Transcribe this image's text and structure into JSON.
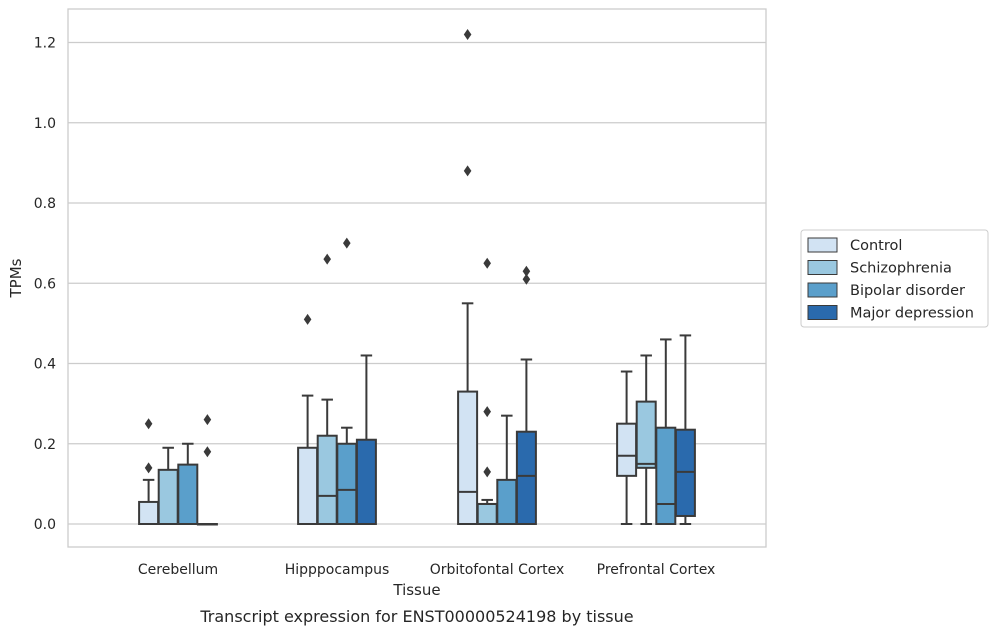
{
  "chart_data": {
    "type": "box",
    "title": "",
    "caption": "Transcript expression for ENST00000524198 by tissue",
    "xlabel": "Tissue",
    "ylabel": "TPMs",
    "ylim": [
      -0.06,
      1.28
    ],
    "yticks": [
      0.0,
      0.2,
      0.4,
      0.6,
      0.8,
      1.0,
      1.2
    ],
    "ytick_labels": [
      "0.0",
      "0.2",
      "0.4",
      "0.6",
      "0.8",
      "1.0",
      "1.2"
    ],
    "grid": true,
    "legend_position": "right",
    "categories": [
      "Cerebellum",
      "Hipppocampus",
      "Orbitofontal Cortex",
      "Prefrontal Cortex"
    ],
    "series": [
      {
        "name": "Control",
        "color": "#d2e3f3",
        "boxes": [
          {
            "whisker_low": 0.0,
            "q1": 0.0,
            "median": 0.0,
            "q3": 0.055,
            "whisker_high": 0.11,
            "outliers": [
              0.14,
              0.25
            ]
          },
          {
            "whisker_low": 0.0,
            "q1": 0.0,
            "median": 0.0,
            "q3": 0.19,
            "whisker_high": 0.32,
            "outliers": [
              0.51
            ]
          },
          {
            "whisker_low": 0.0,
            "q1": 0.0,
            "median": 0.08,
            "q3": 0.33,
            "whisker_high": 0.55,
            "outliers": [
              0.88,
              1.22
            ]
          },
          {
            "whisker_low": 0.0,
            "q1": 0.12,
            "median": 0.17,
            "q3": 0.25,
            "whisker_high": 0.38,
            "outliers": []
          }
        ]
      },
      {
        "name": "Schizophrenia",
        "color": "#9ac8e0",
        "boxes": [
          {
            "whisker_low": 0.0,
            "q1": 0.0,
            "median": 0.0,
            "q3": 0.135,
            "whisker_high": 0.19,
            "outliers": []
          },
          {
            "whisker_low": 0.0,
            "q1": 0.0,
            "median": 0.07,
            "q3": 0.22,
            "whisker_high": 0.31,
            "outliers": [
              0.66
            ]
          },
          {
            "whisker_low": 0.0,
            "q1": 0.0,
            "median": 0.05,
            "q3": 0.05,
            "whisker_high": 0.06,
            "outliers": [
              0.13,
              0.28,
              0.65
            ]
          },
          {
            "whisker_low": 0.0,
            "q1": 0.14,
            "median": 0.15,
            "q3": 0.305,
            "whisker_high": 0.42,
            "outliers": []
          }
        ]
      },
      {
        "name": "Bipolar disorder",
        "color": "#5a9fcb",
        "boxes": [
          {
            "whisker_low": 0.0,
            "q1": 0.0,
            "median": 0.0,
            "q3": 0.148,
            "whisker_high": 0.2,
            "outliers": []
          },
          {
            "whisker_low": 0.0,
            "q1": 0.0,
            "median": 0.085,
            "q3": 0.2,
            "whisker_high": 0.24,
            "outliers": [
              0.7
            ]
          },
          {
            "whisker_low": 0.0,
            "q1": 0.0,
            "median": 0.0,
            "q3": 0.11,
            "whisker_high": 0.27,
            "outliers": []
          },
          {
            "whisker_low": 0.0,
            "q1": 0.0,
            "median": 0.05,
            "q3": 0.24,
            "whisker_high": 0.46,
            "outliers": []
          }
        ]
      },
      {
        "name": "Major depression",
        "color": "#2a6aad",
        "boxes": [
          {
            "whisker_low": 0.0,
            "q1": 0.0,
            "median": 0.0,
            "q3": 0.0,
            "whisker_high": 0.0,
            "outliers": [
              0.18,
              0.26
            ]
          },
          {
            "whisker_low": 0.0,
            "q1": 0.0,
            "median": 0.0,
            "q3": 0.21,
            "whisker_high": 0.42,
            "outliers": []
          },
          {
            "whisker_low": 0.0,
            "q1": 0.0,
            "median": 0.12,
            "q3": 0.23,
            "whisker_high": 0.41,
            "outliers": [
              0.61,
              0.63
            ]
          },
          {
            "whisker_low": 0.0,
            "q1": 0.02,
            "median": 0.13,
            "q3": 0.235,
            "whisker_high": 0.47,
            "outliers": []
          }
        ]
      }
    ]
  }
}
